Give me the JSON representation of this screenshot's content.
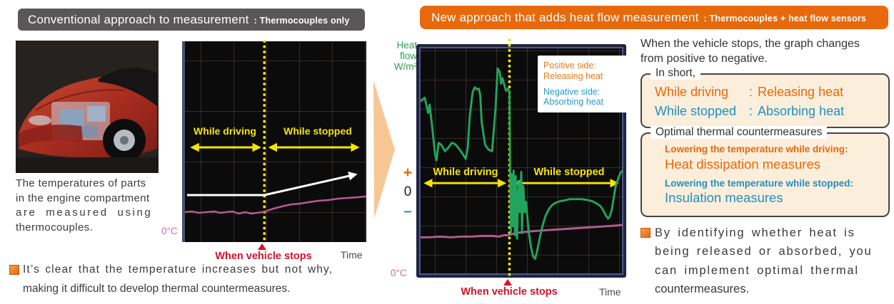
{
  "colors": {
    "header_gray": "#595757",
    "accent_orange": "#e8690b",
    "accent_blue": "#2090c2",
    "chart_yellow": "#f6e400",
    "heatflow_green": "#22a45e",
    "temperature_pink": "#b75a90",
    "alert_red": "#d3122b",
    "box_cream": "#fbeedb",
    "flow_arrow_peach": "#f6c795"
  },
  "conventional": {
    "header": {
      "title": "Conventional approach to measurement",
      "subtitle": ": Thermocouples only"
    },
    "caption_lines": [
      "The temperatures of parts",
      "in the engine compartment",
      "are measured using",
      "thermocouples."
    ],
    "bullet_lines": [
      "It’s clear that the temperature increases but not why,",
      "making it difficult to develop thermal countermeasures."
    ],
    "chart": {
      "type": "line",
      "while_driving": "While driving",
      "while_stopped": "While stopped",
      "zero_c": "0°C",
      "when_vehicle_stops": "When vehicle stops",
      "time_label": "Time",
      "temperature_line_points": "0,240 10,239 20,241 30,240 42,239 50,241 58,240 68,239 76,242 86,240 94,242 102,241 110,240 114,239 120,237 126,235 134,233 142,231 152,229 164,228 176,226 190,224 204,223 218,221 232,220 246,219 258,218",
      "trend_arrow_points": "3,216 113,216 243,187"
    }
  },
  "new_approach": {
    "header": {
      "title": "New approach that adds heat flow measurement",
      "subtitle": ": Thermocouples + heat flow sensors"
    },
    "chart": {
      "type": "line",
      "ylabel_lines": [
        "Heat",
        "flow",
        "W/m²"
      ],
      "axis": {
        "plus": "+",
        "zero": "0",
        "minus": "−"
      },
      "legend": {
        "positive_lines": [
          "Positive side:",
          "Releasing heat"
        ],
        "negative_lines": [
          "Negative side:",
          "Absorbing heat"
        ]
      },
      "while_driving": "While driving",
      "while_stopped": "While stopped",
      "zero_c": "0°C",
      "when_vehicle_stops": "When vehicle stops",
      "time_label": "Time",
      "heat_flow_line_points": "2,78 8,73 13,95 15,83 18,108 23,155 25,163 28,138 32,141 37,150 42,145 47,138 52,140 57,146 62,153 67,161 70,145 73,98 77,65 80,58 83,61 86,60 88,70 90,108 95,141 100,148 105,150 110,88 113,31 116,36 118,53 120,45 125,63 128,60 130,64 131,180 132,268 133,183 135,258 136,178 138,271 139,186 141,276 143,193 145,238 147,180 148,268 150,200 152,238 154,223 156,248 158,268 161,288 164,301 167,305 170,293 174,273 178,256 182,243 187,233 192,227 197,224 203,222 209,221 217,219 225,219 233,219 241,220 249,222 255,225 261,229 265,235 269,243 272,247 274,245 277,236 280,218 283,200 287,188 290,181 293,178",
      "temperature_line_points": "2,274 15,274 30,273 45,274 60,273 75,273 90,272 105,272 115,273 122,271 128,271 135,269 145,267 155,266 165,265 180,264 195,263 210,262 225,261 240,260 255,259 270,258 285,257 293,256"
    },
    "summary_lines": [
      "When the vehicle stops, the graph changes",
      "from positive to negative."
    ],
    "in_short": {
      "legend": "In short,",
      "rows": [
        {
          "label": "While driving",
          "sep": ":",
          "value": "Releasing heat"
        },
        {
          "label": "While stopped",
          "sep": ":",
          "value": "Absorbing heat"
        }
      ]
    },
    "countermeasures": {
      "legend": "Optimal thermal countermeasures",
      "items": [
        {
          "caption": "Lowering the temperature while driving:",
          "title": "Heat dissipation measures"
        },
        {
          "caption": "Lowering the temperature while stopped:",
          "title": "Insulation measures"
        }
      ]
    },
    "bullet_lines": [
      "By identifying whether heat is",
      "being released or absorbed, you",
      "can implement optimal thermal",
      "countermeasures."
    ]
  }
}
